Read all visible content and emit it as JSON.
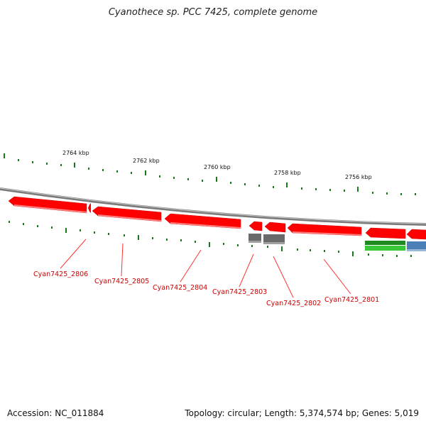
{
  "title": "Cyanothece sp. PCC 7425, complete genome",
  "footer": {
    "accession": "Accession: NC_011884",
    "summary": "Topology: circular; Length: 5,374,574 bp; Genes: 5,019"
  },
  "colors": {
    "backbone": "#8a8a8a",
    "gene_forward": "#ff0000",
    "gene_gray": "#6a6a6a",
    "gene_green": "#2eaa2e",
    "gene_blue": "#4a7fb8",
    "tick": "#1a7a1a",
    "label": "#cc0000",
    "leader": "#ff3333"
  },
  "scale_labels": [
    "2764 kbp",
    "2762 kbp",
    "2760 kbp",
    "2758 kbp",
    "2756 kbp"
  ],
  "gene_labels": [
    "Cyan7425_2806",
    "Cyan7425_2805",
    "Cyan7425_2804",
    "Cyan7425_2803",
    "Cyan7425_2802",
    "Cyan7425_2801"
  ]
}
